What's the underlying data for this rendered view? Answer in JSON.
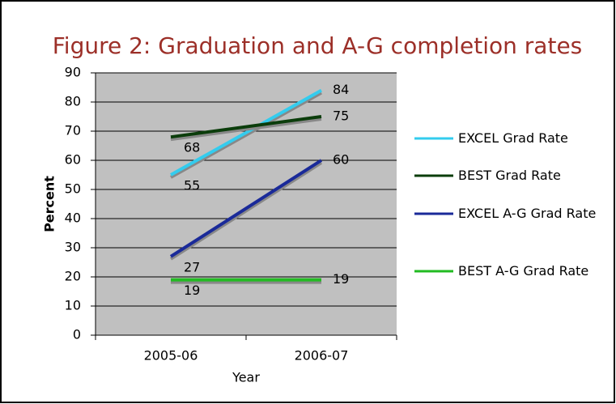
{
  "chart_data": {
    "type": "line",
    "title": "Figure 2: Graduation and A-G completion rates",
    "x_label": "Year",
    "y_label": "Percent",
    "categories": [
      "2005-06",
      "2006-07"
    ],
    "series": [
      {
        "name": "EXCEL Grad Rate",
        "color": "#33ccee",
        "values": [
          55,
          84
        ]
      },
      {
        "name": "BEST Grad Rate",
        "color": "#0b3d0b",
        "values": [
          68,
          75
        ]
      },
      {
        "name": "EXCEL A-G Grad Rate",
        "color": "#1a2a99",
        "values": [
          27,
          60
        ]
      },
      {
        "name": "BEST A-G Grad Rate",
        "color": "#22bb22",
        "values": [
          19,
          19
        ]
      }
    ],
    "ylim": [
      0,
      90
    ],
    "yticks": [
      0,
      10,
      20,
      30,
      40,
      50,
      60,
      70,
      80,
      90
    ],
    "grid": true,
    "legend": "right"
  }
}
